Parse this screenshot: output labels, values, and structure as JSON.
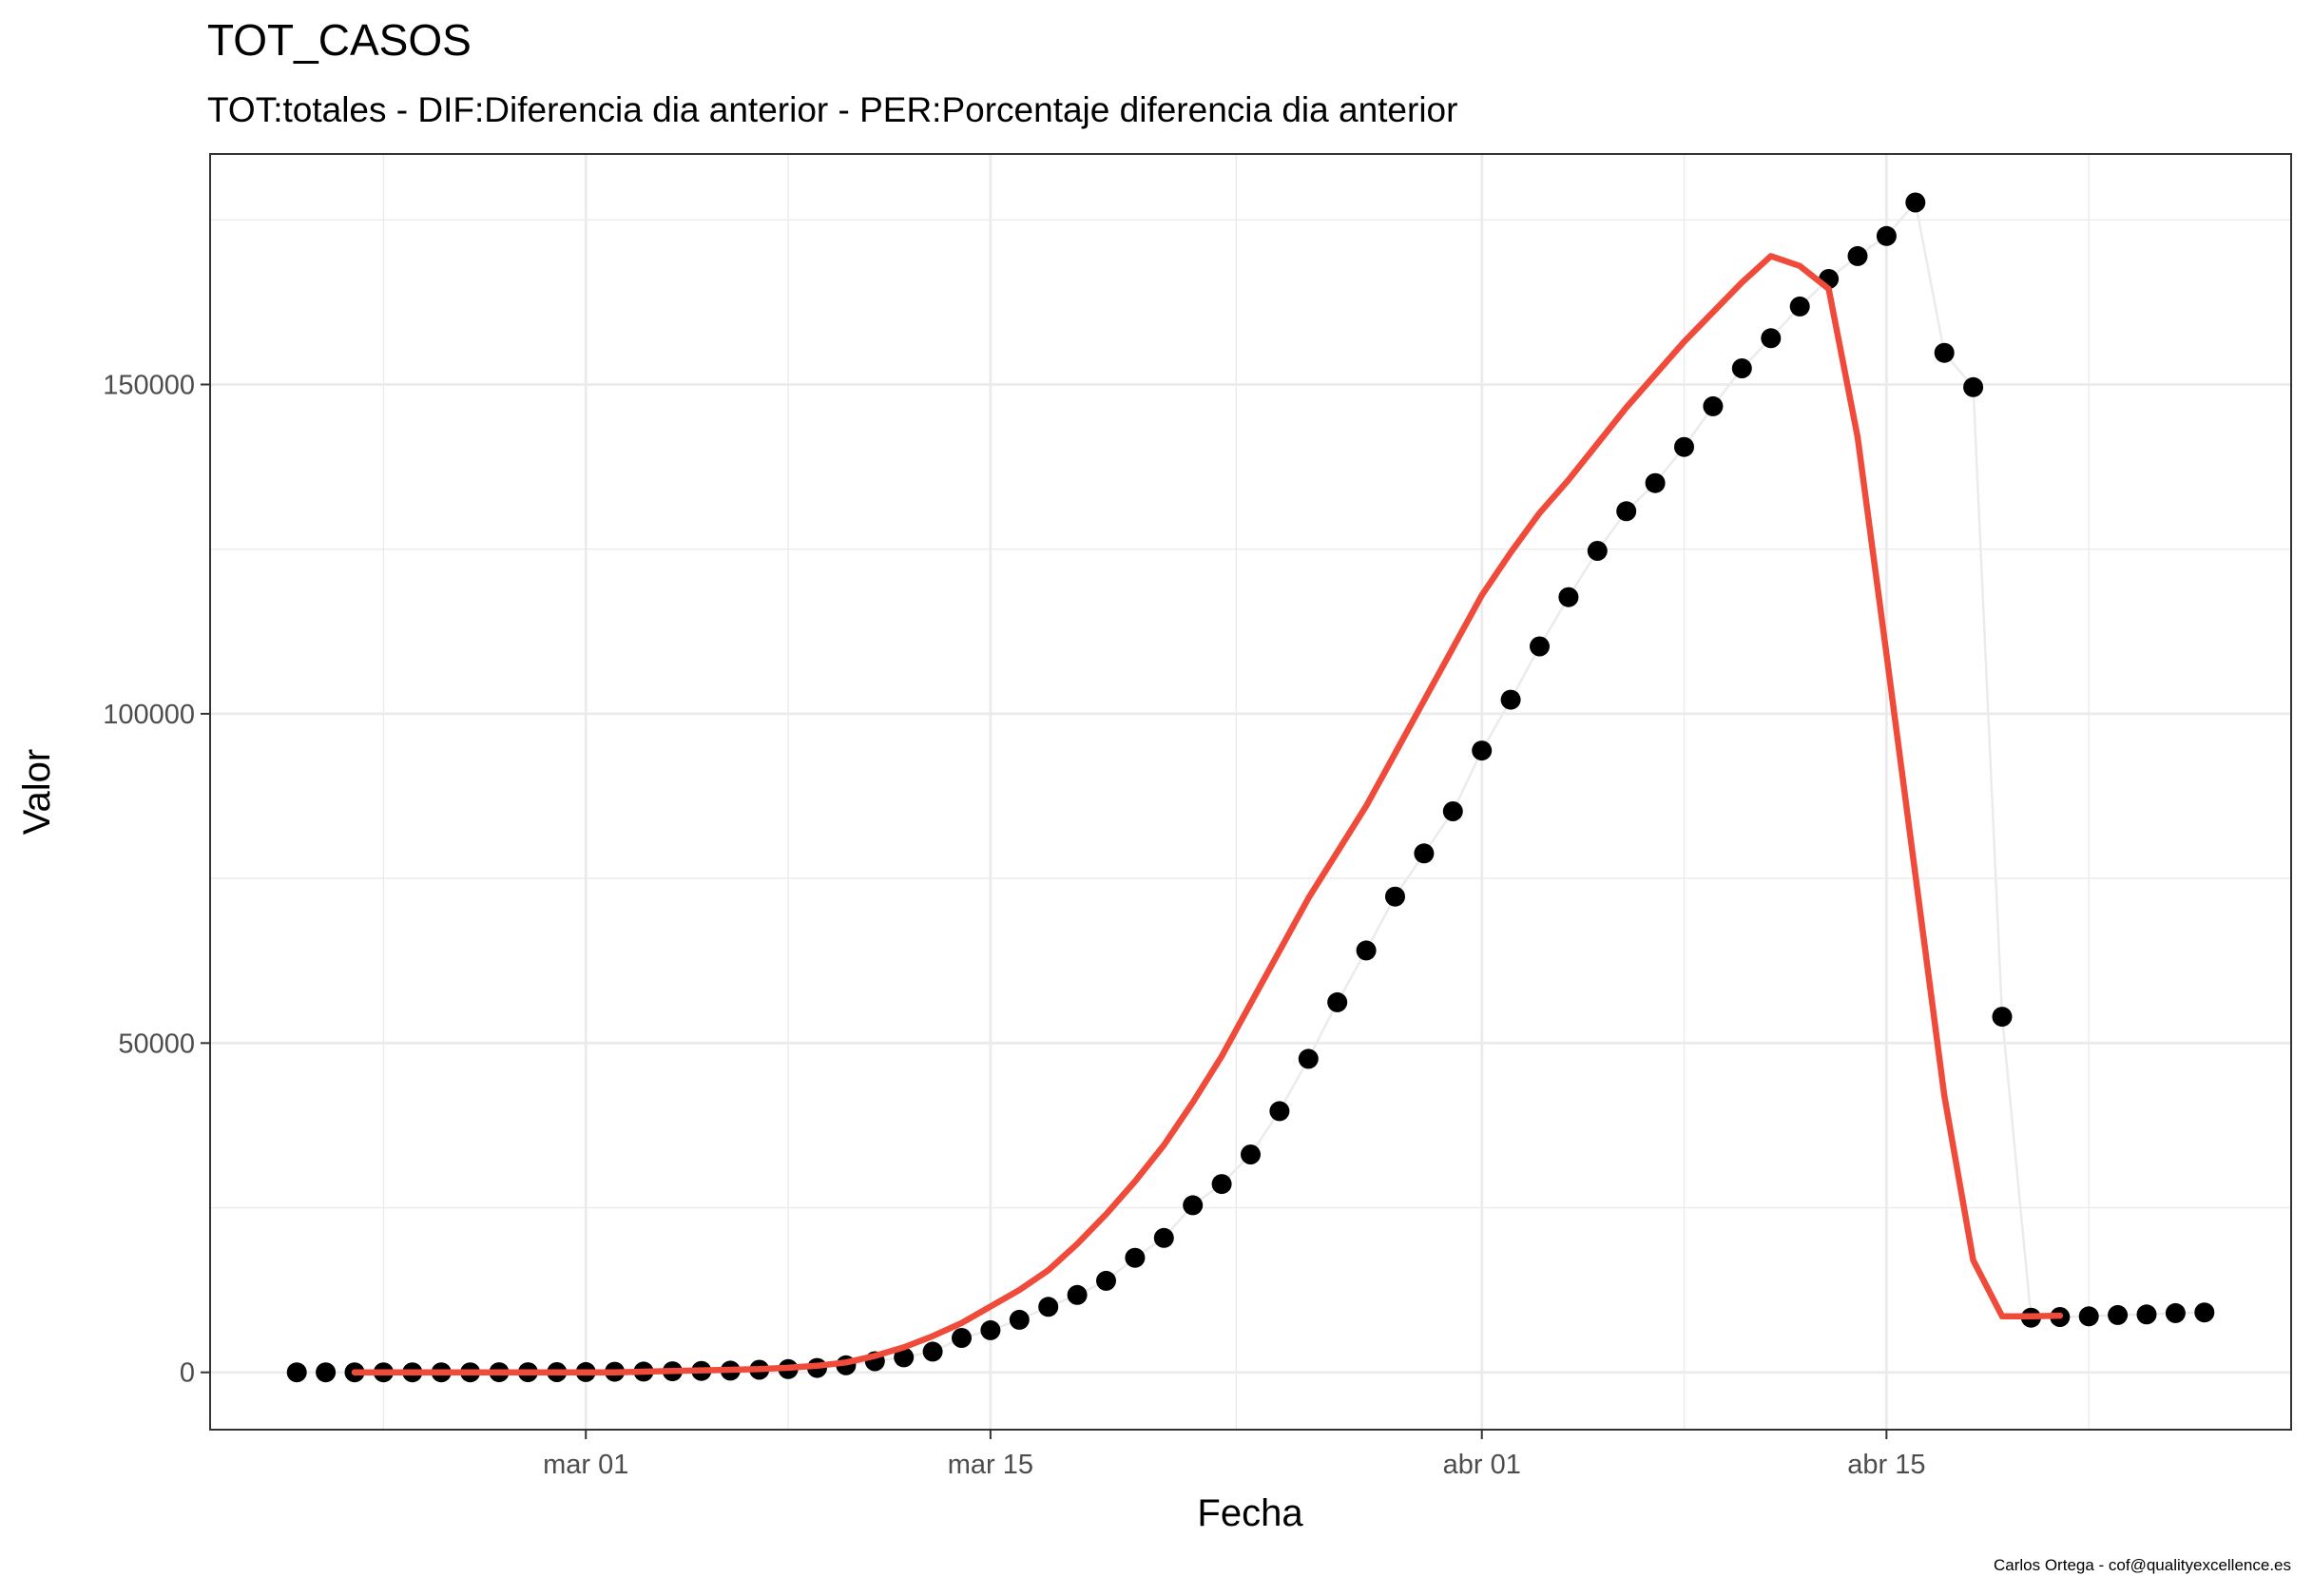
{
  "chart_data": {
    "type": "line",
    "title": "TOT_CASOS",
    "subtitle": "TOT:totales - DIF:Diferencia dia anterior - PER:Porcentaje diferencia dia anterior",
    "xlabel": "Fecha",
    "ylabel": "Valor",
    "caption": "Carlos Ortega - cof@qualityexcellence.es",
    "x_start": "2020-02-20",
    "xlim": [
      "2020-02-17",
      "2020-04-29"
    ],
    "ylim": [
      -8700,
      185000
    ],
    "x_ticks": [
      {
        "date": "2020-03-01",
        "label": "mar 01"
      },
      {
        "date": "2020-03-15",
        "label": "mar 15"
      },
      {
        "date": "2020-04-01",
        "label": "abr 01"
      },
      {
        "date": "2020-04-15",
        "label": "abr 15"
      }
    ],
    "y_ticks": [
      {
        "value": 0,
        "label": "0"
      },
      {
        "value": 50000,
        "label": "50000"
      },
      {
        "value": 100000,
        "label": "100000"
      },
      {
        "value": 150000,
        "label": "150000"
      }
    ],
    "grid": true,
    "colors": {
      "points": "#000000",
      "raw_line": "#ebebeb",
      "smooth_line": "#f04b3a",
      "grid": "#ebebeb",
      "panel_border": "#333333"
    },
    "series": [
      {
        "type": "scatter",
        "values": [
          3,
          3,
          3,
          4,
          4,
          5,
          6,
          12,
          15,
          32,
          45,
          84,
          120,
          165,
          222,
          259,
          400,
          500,
          673,
          1073,
          1695,
          2277,
          3146,
          5232,
          6391,
          7988,
          9942,
          11748,
          13910,
          17395,
          20410,
          25374,
          28603,
          33089,
          39673,
          47610,
          56188,
          64059,
          72248,
          78797,
          85195,
          94417,
          102136,
          110238,
          117710,
          124736,
          130759,
          135032,
          140510,
          146690,
          152446,
          157022,
          161852,
          166019,
          169496,
          172541,
          177633,
          154800,
          149600,
          54000,
          8300,
          8400,
          8500,
          8700,
          8800,
          9000,
          9100
        ]
      },
      {
        "type": "line",
        "smooth": true,
        "start_offset": 2,
        "values": [
          0,
          0,
          0,
          0,
          0,
          0,
          0,
          0,
          0,
          0,
          100,
          200,
          300,
          400,
          500,
          700,
          1000,
          1500,
          2500,
          3800,
          5500,
          7500,
          10000,
          12500,
          15500,
          19500,
          24000,
          29000,
          34500,
          41000,
          48000,
          56000,
          64000,
          72000,
          79000,
          86000,
          94000,
          102000,
          110000,
          118000,
          124500,
          130500,
          135500,
          141000,
          146500,
          151500,
          156500,
          161000,
          165500,
          169500,
          168000,
          164500,
          142000,
          109000,
          75500,
          42000,
          17000,
          8500,
          8500,
          8600
        ]
      }
    ]
  }
}
